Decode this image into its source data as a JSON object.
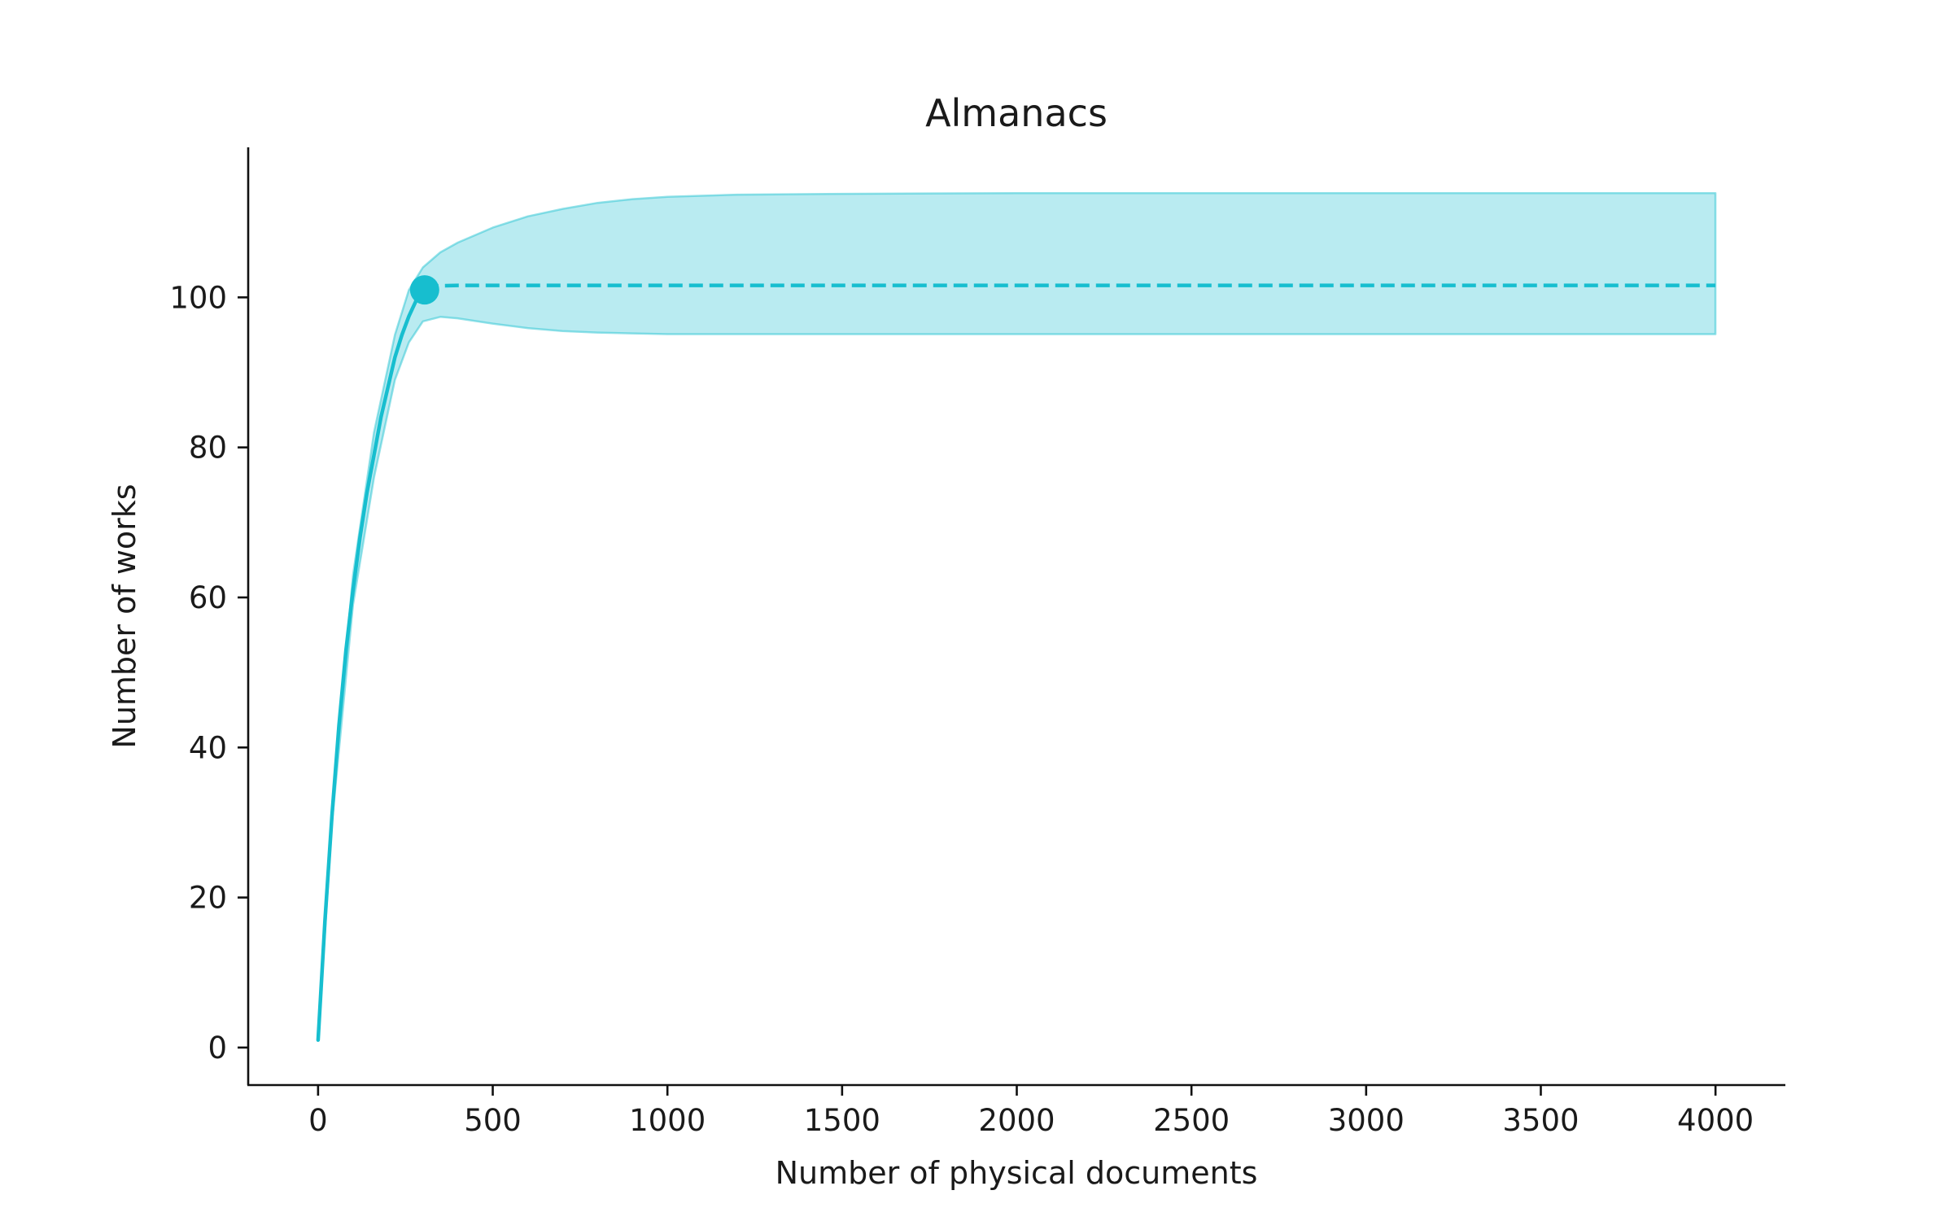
{
  "chart_data": {
    "type": "line",
    "title": "Almanacs",
    "xlabel": "Number of physical documents",
    "ylabel": "Number of works",
    "xlim": [
      -200,
      4200
    ],
    "ylim": [
      -5,
      120
    ],
    "xticks": [
      0,
      500,
      1000,
      1500,
      2000,
      2500,
      3000,
      3500,
      4000
    ],
    "yticks": [
      0,
      20,
      40,
      60,
      80,
      100
    ],
    "grid": false,
    "legend": false,
    "color": "#17becf",
    "band_color": "#17becf",
    "observed": {
      "x": [
        0,
        20,
        40,
        60,
        80,
        100,
        120,
        140,
        160,
        180,
        200,
        220,
        240,
        260,
        280,
        305
      ],
      "y": [
        1,
        17,
        31,
        43,
        53,
        61,
        68,
        74,
        79,
        84,
        88,
        92,
        95,
        97.5,
        99.5,
        101
      ]
    },
    "extrapolation": {
      "x": [
        305,
        400,
        500,
        1000,
        2000,
        3000,
        4000
      ],
      "y": [
        101.5,
        101.6,
        101.6,
        101.6,
        101.6,
        101.6,
        101.6
      ],
      "style": "dashed"
    },
    "marker": {
      "x": 305,
      "y": 101
    },
    "band_upper": {
      "x": [
        0,
        40,
        100,
        160,
        220,
        260,
        300,
        350,
        400,
        500,
        600,
        700,
        800,
        900,
        1000,
        1200,
        1500,
        2000,
        3000,
        4000
      ],
      "y": [
        1,
        32,
        63,
        82,
        95,
        101,
        104,
        106,
        107.3,
        109.3,
        110.8,
        111.8,
        112.6,
        113.1,
        113.4,
        113.7,
        113.8,
        113.9,
        113.9,
        113.9
      ]
    },
    "band_lower": {
      "x": [
        0,
        40,
        100,
        160,
        220,
        260,
        300,
        350,
        400,
        500,
        600,
        700,
        800,
        900,
        1000,
        1200,
        1500,
        2000,
        3000,
        4000
      ],
      "y": [
        1,
        30,
        59,
        76,
        89,
        94,
        96.8,
        97.4,
        97.2,
        96.5,
        95.9,
        95.5,
        95.3,
        95.2,
        95.1,
        95.1,
        95.1,
        95.1,
        95.1,
        95.1
      ]
    }
  }
}
